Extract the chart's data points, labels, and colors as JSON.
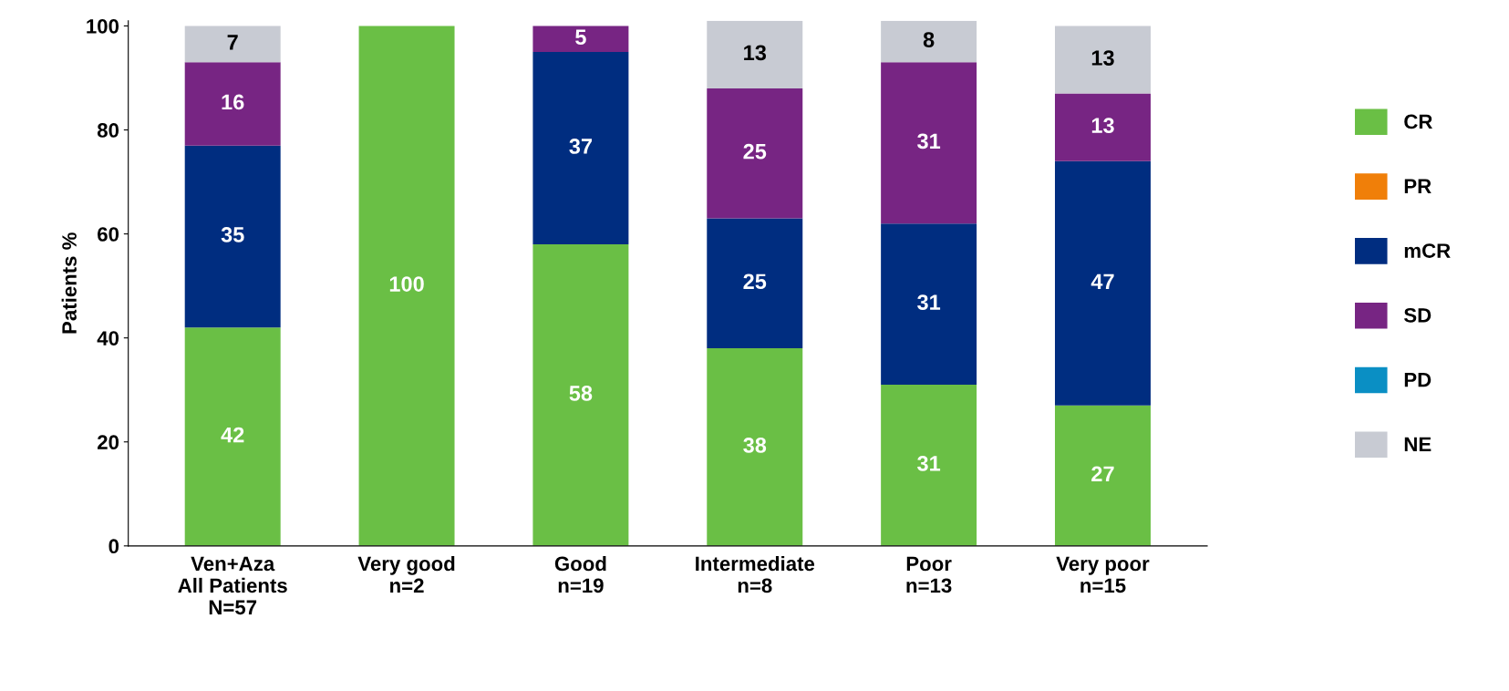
{
  "chart_data": {
    "type": "bar",
    "stacked": true,
    "ylabel": "Patients %",
    "categories": [
      "Ven+Aza\nAll Patients\nN=57",
      "Very good\nn=2",
      "Good\nn=19",
      "Intermediate\nn=8",
      "Poor\nn=13",
      "Very poor\nn=15"
    ],
    "series": [
      {
        "name": "CR",
        "color": "#6abf45",
        "values": [
          42,
          100,
          58,
          38,
          31,
          27
        ]
      },
      {
        "name": "PR",
        "color": "#f07f09",
        "values": [
          null,
          null,
          null,
          null,
          null,
          null
        ]
      },
      {
        "name": "mCR",
        "color": "#002d80",
        "values": [
          35,
          null,
          37,
          25,
          31,
          47
        ]
      },
      {
        "name": "SD",
        "color": "#772583",
        "values": [
          16,
          null,
          5,
          25,
          31,
          13
        ]
      },
      {
        "name": "PD",
        "color": "#0a8fc4",
        "values": [
          null,
          null,
          null,
          null,
          null,
          null
        ]
      },
      {
        "name": "NE",
        "color": "#c8cbd3",
        "values": [
          7,
          null,
          null,
          13,
          8,
          13
        ]
      }
    ],
    "ylim": [
      0,
      101
    ],
    "yticks": [
      0,
      20,
      40,
      60,
      80,
      100
    ],
    "grid": false,
    "legend": "right",
    "data_labels": true
  }
}
